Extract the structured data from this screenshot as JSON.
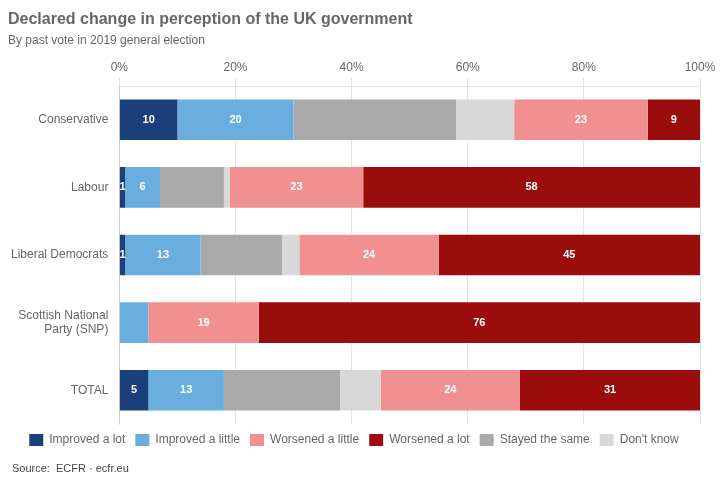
{
  "chart_data": {
    "type": "bar",
    "orientation": "horizontal",
    "stacked": true,
    "title": "Declared change in perception of the UK government",
    "subtitle": "By past vote in 2019 general election",
    "source": "Source:  ECFR · ecfr.eu",
    "categories": [
      "Conservative",
      "Labour",
      "Liberal Democrats",
      "Scottish National\nParty (SNP)",
      "TOTAL"
    ],
    "series": [
      {
        "name": "Improved a lot",
        "color": "#1a3f7a",
        "values": [
          10,
          1,
          1,
          0,
          5
        ],
        "data_labels": true,
        "value_labels": [
          "10",
          "1",
          "1",
          null,
          "5"
        ]
      },
      {
        "name": "Improved a little",
        "color": "#6aaee0",
        "values": [
          20,
          6,
          13,
          5,
          13
        ],
        "data_labels": true,
        "value_labels": [
          "20",
          "6",
          "13",
          null,
          "13"
        ]
      },
      {
        "name": "Stayed the same",
        "color": "#aaaaaa",
        "values": [
          28,
          11,
          14,
          0,
          20
        ],
        "data_labels": false
      },
      {
        "name": "Don't know",
        "color": "#d8d8d8",
        "values": [
          10,
          1,
          3,
          0,
          7
        ],
        "data_labels": false
      },
      {
        "name": "Worsened a little",
        "color": "#f09090",
        "values": [
          23,
          23,
          24,
          19,
          24
        ],
        "data_labels": true,
        "value_labels": [
          "23",
          "23",
          "24",
          "19",
          "24"
        ]
      },
      {
        "name": "Worsened a lot",
        "color": "#9b0d0d",
        "values": [
          9,
          58,
          45,
          76,
          31
        ],
        "data_labels": true,
        "value_labels": [
          "9",
          "58",
          "45",
          "76",
          "31"
        ]
      }
    ],
    "legend_order": [
      "Improved a lot",
      "Improved a little",
      "Worsened a little",
      "Worsened a lot",
      "Stayed the same",
      "Don't know"
    ],
    "legend": "bottom",
    "xlim": [
      0,
      100
    ],
    "xticks": [
      {
        "value": 0,
        "label": "0%"
      },
      {
        "value": 20,
        "label": "20%"
      },
      {
        "value": 40,
        "label": "40%"
      },
      {
        "value": 60,
        "label": "60%"
      },
      {
        "value": 80,
        "label": "80%"
      },
      {
        "value": 100,
        "label": "100%"
      }
    ],
    "grid": true
  }
}
